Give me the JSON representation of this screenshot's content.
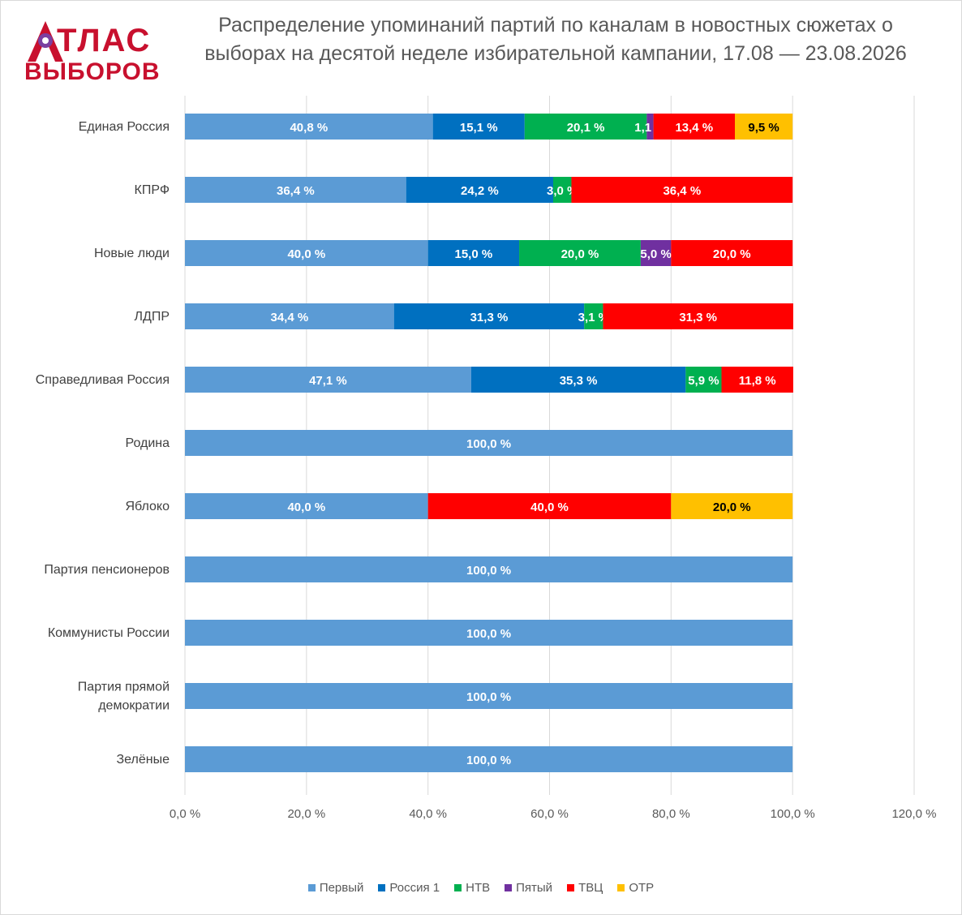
{
  "logo": {
    "top_text": "ТЛАС",
    "bottom_text": "ВЫБОРОВ"
  },
  "colors": {
    "Первый": "#5b9bd5",
    "Россия 1": "#0070c0",
    "НТВ": "#00b050",
    "Пятый": "#7030a0",
    "ТВЦ": "#ff0000",
    "ОТР": "#ffc000"
  },
  "chart_data": {
    "type": "bar",
    "orientation": "horizontal",
    "stacked": true,
    "title": "Распределение упоминаний партий по каналам в новостных сюжетах о выборах на десятой неделе избирательной кампании, 17.08 — 23.08.2026",
    "title_lines": [
      "Распределение упоминаний партий по каналам в новостных сюжетах о",
      "выборах на десятой неделе избирательной кампании, 17.08 — 23.08.2026"
    ],
    "categories": [
      "Единая Россия",
      "КПРФ",
      "Новые люди",
      "ЛДПР",
      "Справедливая Россия",
      "Родина",
      "Яблоко",
      "Партия пенсионеров",
      "Коммунисты России",
      "Партия прямой демократии",
      "Зелёные"
    ],
    "category_lines": [
      [
        "Единая Россия"
      ],
      [
        "КПРФ"
      ],
      [
        "Новые люди"
      ],
      [
        "ЛДПР"
      ],
      [
        "Справедливая Россия"
      ],
      [
        "Родина"
      ],
      [
        "Яблоко"
      ],
      [
        "Партия пенсионеров"
      ],
      [
        "Коммунисты России"
      ],
      [
        "Партия прямой",
        "демократии"
      ],
      [
        "Зелёные"
      ]
    ],
    "series": [
      {
        "name": "Первый",
        "values": [
          40.8,
          36.4,
          40.0,
          34.4,
          47.1,
          100.0,
          40.0,
          100.0,
          100.0,
          100.0,
          100.0
        ]
      },
      {
        "name": "Россия 1",
        "values": [
          15.1,
          24.2,
          15.0,
          31.3,
          35.3,
          0,
          0,
          0,
          0,
          0,
          0
        ]
      },
      {
        "name": "НТВ",
        "values": [
          20.1,
          3.0,
          20.0,
          3.1,
          5.9,
          0,
          0,
          0,
          0,
          0,
          0
        ]
      },
      {
        "name": "Пятый",
        "values": [
          1.1,
          0,
          5.0,
          0,
          0,
          0,
          0,
          0,
          0,
          0,
          0
        ]
      },
      {
        "name": "ТВЦ",
        "values": [
          13.4,
          36.4,
          20.0,
          31.3,
          11.8,
          0,
          40.0,
          0,
          0,
          0,
          0
        ]
      },
      {
        "name": "ОТР",
        "values": [
          9.5,
          0,
          0,
          0,
          0,
          0,
          20.0,
          0,
          0,
          0,
          0
        ]
      }
    ],
    "xlim": [
      0,
      120
    ],
    "xticks": [
      "0,0 %",
      "20,0 %",
      "40,0 %",
      "60,0 %",
      "80,0 %",
      "100,0 %",
      "120,0 %"
    ],
    "grid": true,
    "legend_position": "bottom"
  }
}
